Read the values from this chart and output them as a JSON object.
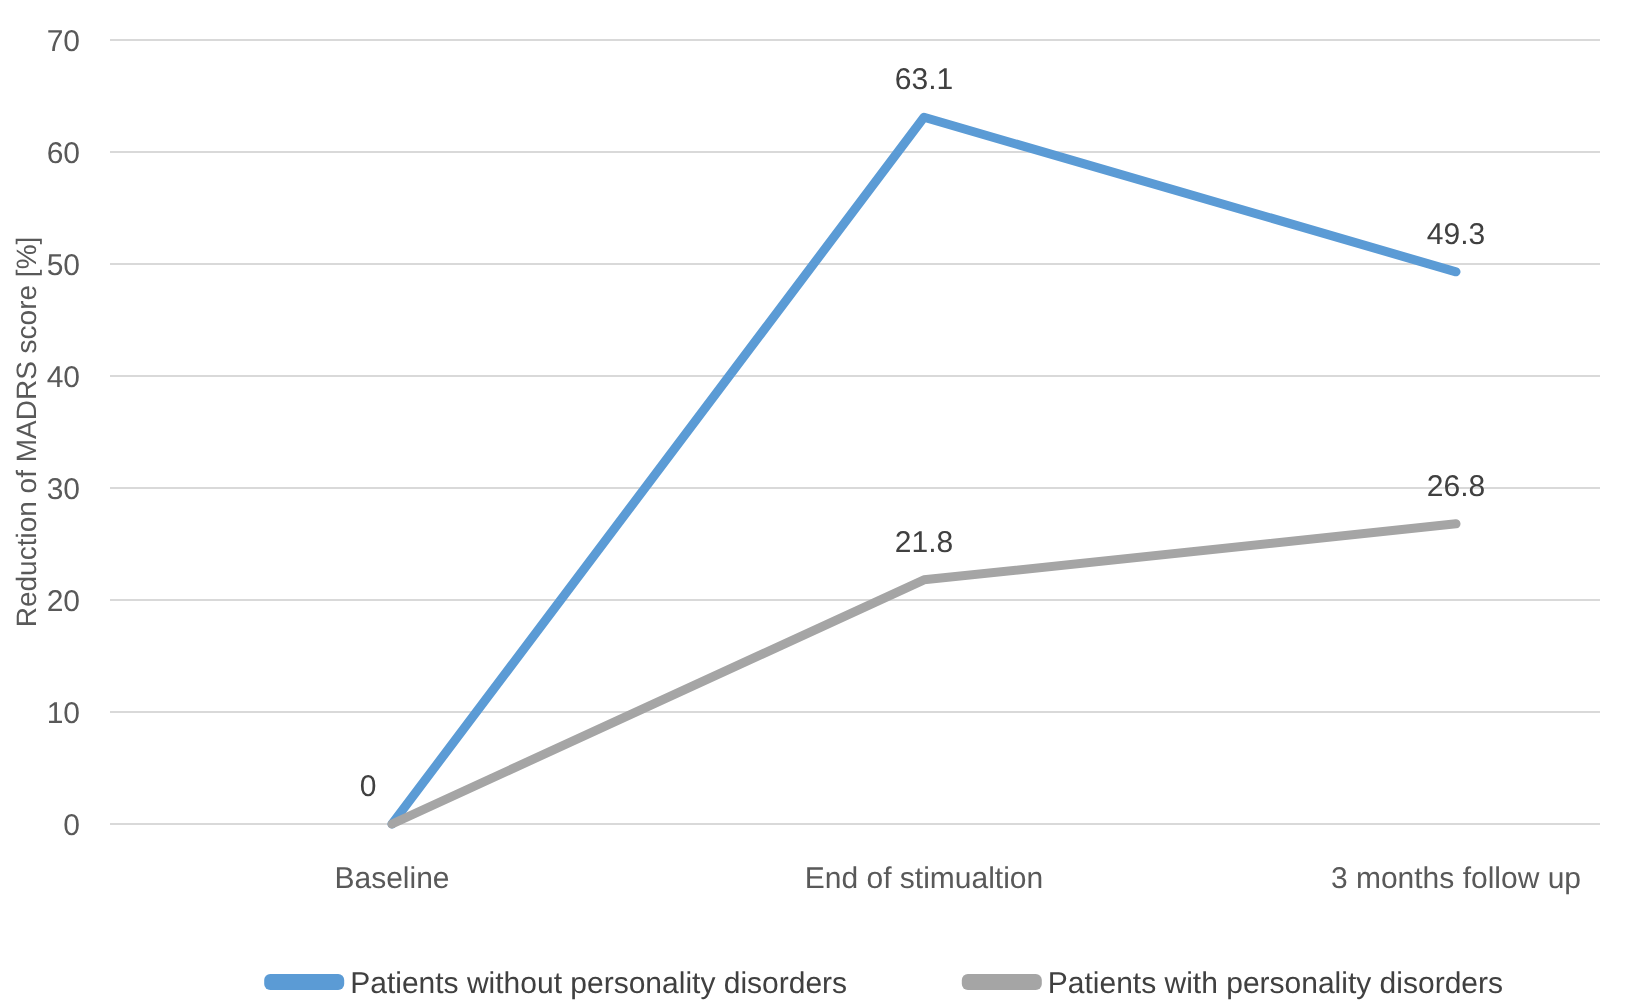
{
  "chart_data": {
    "type": "line",
    "ylabel": "Reduction of MADRS score [%]",
    "categories": [
      "Baseline",
      "End of stimualtion",
      "3 months follow up"
    ],
    "series": [
      {
        "name": "Patients without personality disorders",
        "color": "#5b9bd5",
        "values": [
          0,
          63.1,
          49.3
        ],
        "value_labels": [
          "0",
          "63.1",
          "49.3"
        ]
      },
      {
        "name": "Patients with personality disorders",
        "color": "#a5a5a5",
        "values": [
          0,
          21.8,
          26.8
        ],
        "value_labels": [
          null,
          "21.8",
          "26.8"
        ]
      }
    ],
    "ylim": [
      0,
      70
    ],
    "yticks": [
      0,
      10,
      20,
      30,
      40,
      50,
      60,
      70
    ],
    "grid": "y",
    "legend": "bottom",
    "marker": "none",
    "line_style": "solid"
  }
}
